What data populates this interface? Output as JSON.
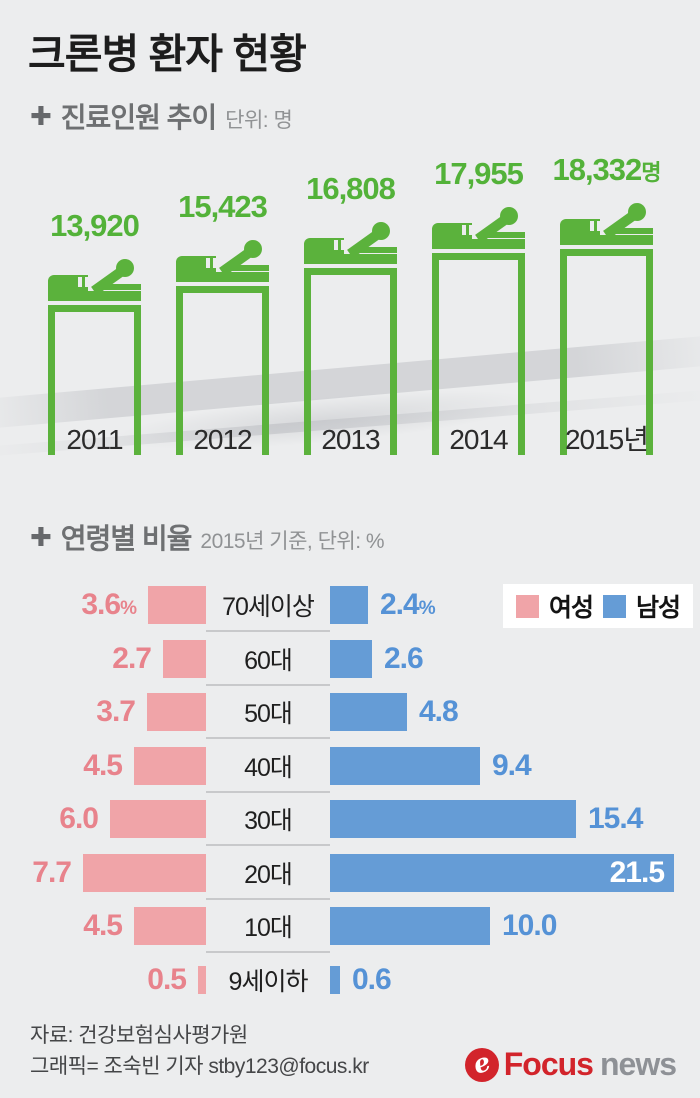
{
  "page": {
    "title": "크론병 환자 현황",
    "background_color": "#ecedee"
  },
  "section_trend": {
    "marker": "✚",
    "title": "진료인원 추이",
    "unit_label": "단위: 명"
  },
  "section_age": {
    "marker": "✚",
    "title": "연령별 비율",
    "subtitle": "2015년 기준, 단위: %"
  },
  "legend": {
    "female_label": "여성",
    "male_label": "남성",
    "female_color": "#f0a4a8",
    "male_color": "#659cd6"
  },
  "chart_data": [
    {
      "type": "bar",
      "title": "진료인원 추이",
      "unit": "명",
      "orientation": "vertical",
      "categories": [
        "2011",
        "2012",
        "2013",
        "2014",
        "2015년"
      ],
      "values": [
        13920,
        15423,
        16808,
        17955,
        18332
      ],
      "value_labels": [
        "13,920",
        "15,423",
        "16,808",
        "17,955",
        "18,332"
      ],
      "value_suffixes": [
        "",
        "",
        "",
        "",
        "명"
      ],
      "bar_color": "#5bb23c",
      "label_color": "#53b239",
      "icon": "patient-in-bed",
      "grid": false,
      "baseline": "open-bottom-outlined-bars"
    },
    {
      "type": "bar",
      "title": "연령별 비율",
      "subtitle": "2015년 기준, 단위: %",
      "unit": "%",
      "orientation": "horizontal-diverging",
      "categories": [
        "70세이상",
        "60대",
        "50대",
        "40대",
        "30대",
        "20대",
        "10대",
        "9세이하"
      ],
      "series": [
        {
          "name": "여성",
          "color": "#f0a4a8",
          "values": [
            3.6,
            2.7,
            3.7,
            4.5,
            6.0,
            7.7,
            4.5,
            0.5
          ],
          "value_labels": [
            "3.6",
            "2.7",
            "3.7",
            "4.5",
            "6.0",
            "7.7",
            "4.5",
            "0.5"
          ]
        },
        {
          "name": "남성",
          "color": "#659cd6",
          "values": [
            2.4,
            2.6,
            4.8,
            9.4,
            15.4,
            21.5,
            10.0,
            0.6
          ],
          "value_labels": [
            "2.4",
            "2.6",
            "4.8",
            "9.4",
            "15.4",
            "21.5",
            "10.0",
            "0.6"
          ]
        }
      ],
      "unit_suffix_on_first_row": "%",
      "legend_position": "top-right",
      "xlim": [
        0,
        21.5
      ],
      "grid": false
    }
  ],
  "footer": {
    "source": "자료: 건강보험심사평가원",
    "credit": "그래픽= 조숙빈 기자 stby123@focus.kr",
    "logo": {
      "mark_glyph": "e",
      "word1": "Focus",
      "word2": "news"
    }
  }
}
